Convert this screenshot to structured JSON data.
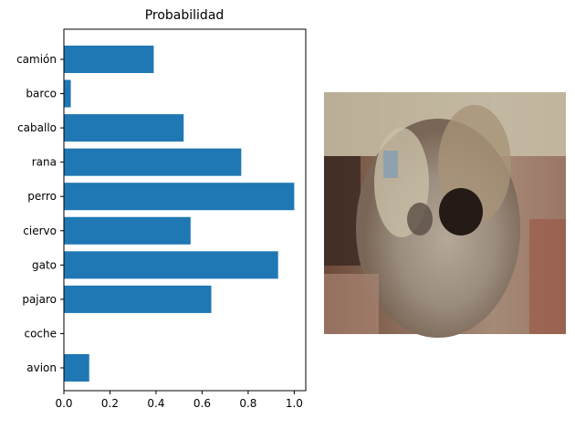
{
  "chart_data": {
    "type": "bar",
    "orientation": "horizontal",
    "title": "Probabilidad",
    "xlabel": "",
    "ylabel": "",
    "categories": [
      "avion",
      "coche",
      "pajaro",
      "gato",
      "ciervo",
      "perro",
      "rana",
      "caballo",
      "barco",
      "camión"
    ],
    "values": [
      0.11,
      0.0,
      0.64,
      0.93,
      0.55,
      1.0,
      0.77,
      0.52,
      0.03,
      0.39
    ],
    "xlim": [
      0,
      1.05
    ],
    "xticks": [
      "0.0",
      "0.2",
      "0.4",
      "0.6",
      "0.8",
      "1.0"
    ],
    "grid": false,
    "bar_color": "#1f77b4"
  },
  "image_panel": {
    "icon": "pixelated-dog-photo"
  }
}
